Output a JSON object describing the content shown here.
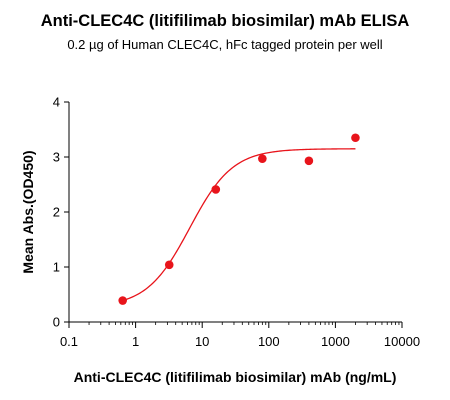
{
  "chart_data": {
    "type": "scatter",
    "title": "Anti-CLEC4C (litifilimab biosimilar) mAb ELISA",
    "subtitle": "0.2 µg of Human CLEC4C, hFc tagged protein per well",
    "xlabel": "Anti-CLEC4C (litifilimab biosimilar) mAb (ng/mL)",
    "ylabel": "Mean Abs.(OD450)",
    "x_scale": "log",
    "xlim": [
      0.1,
      10000
    ],
    "ylim": [
      0,
      4
    ],
    "x_ticks": [
      0.1,
      1,
      10,
      100,
      1000,
      10000
    ],
    "x_tick_labels": [
      "0.1",
      "1",
      "10",
      "100",
      "1000",
      "10000"
    ],
    "y_ticks": [
      0,
      1,
      2,
      3,
      4
    ],
    "y_tick_labels": [
      "0",
      "1",
      "2",
      "3",
      "4"
    ],
    "grid": false,
    "color": "#e8141b",
    "series": [
      {
        "points": [
          {
            "x": 0.64,
            "y": 0.39
          },
          {
            "x": 3.2,
            "y": 1.04
          },
          {
            "x": 16,
            "y": 2.41
          },
          {
            "x": 80,
            "y": 2.97
          },
          {
            "x": 400,
            "y": 2.93
          },
          {
            "x": 2000,
            "y": 3.35
          }
        ],
        "fit": {
          "model": "4PL",
          "bottom": 0.27,
          "top": 3.15,
          "ec50": 6.5,
          "hill": 1.35
        }
      }
    ]
  }
}
